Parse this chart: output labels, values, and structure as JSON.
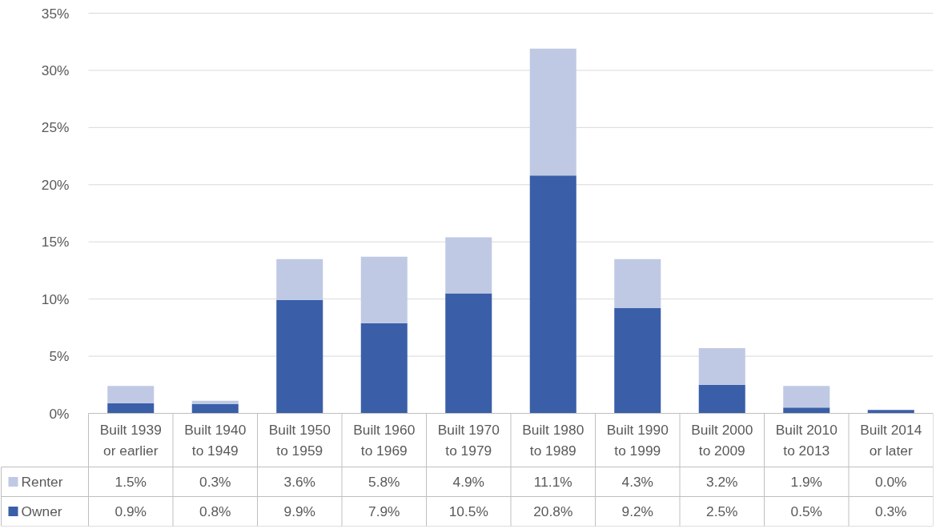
{
  "chart_data": {
    "type": "bar",
    "stacked": true,
    "categories": [
      "Built 1939\nor earlier",
      "Built 1940\nto 1949",
      "Built 1950\nto 1959",
      "Built 1960\nto 1969",
      "Built 1970\nto 1979",
      "Built 1980\nto 1989",
      "Built 1990\nto 1999",
      "Built 2000\nto 2009",
      "Built 2010\nto 2013",
      "Built 2014\nor later"
    ],
    "series": [
      {
        "name": "Owner",
        "color": "#3a5fa8",
        "values": [
          0.9,
          0.8,
          9.9,
          7.9,
          10.5,
          20.8,
          9.2,
          2.5,
          0.5,
          0.3
        ],
        "value_labels": [
          "0.9%",
          "0.8%",
          "9.9%",
          "7.9%",
          "10.5%",
          "20.8%",
          "9.2%",
          "2.5%",
          "0.5%",
          "0.3%"
        ]
      },
      {
        "name": "Renter",
        "color": "#c0c9e4",
        "values": [
          1.5,
          0.3,
          3.6,
          5.8,
          4.9,
          11.1,
          4.3,
          3.2,
          1.9,
          0.0
        ],
        "value_labels": [
          "1.5%",
          "0.3%",
          "3.6%",
          "5.8%",
          "4.9%",
          "11.1%",
          "4.3%",
          "3.2%",
          "1.9%",
          "0.0%"
        ]
      }
    ],
    "ylim": [
      0,
      35
    ],
    "yticks": [
      {
        "value": 0,
        "label": "0%"
      },
      {
        "value": 5,
        "label": "5%"
      },
      {
        "value": 10,
        "label": "10%"
      },
      {
        "value": 15,
        "label": "15%"
      },
      {
        "value": 20,
        "label": "20%"
      },
      {
        "value": 25,
        "label": "25%"
      },
      {
        "value": 30,
        "label": "30%"
      },
      {
        "value": 35,
        "label": "35%"
      }
    ],
    "grid": "y",
    "legend": "bottom left"
  }
}
